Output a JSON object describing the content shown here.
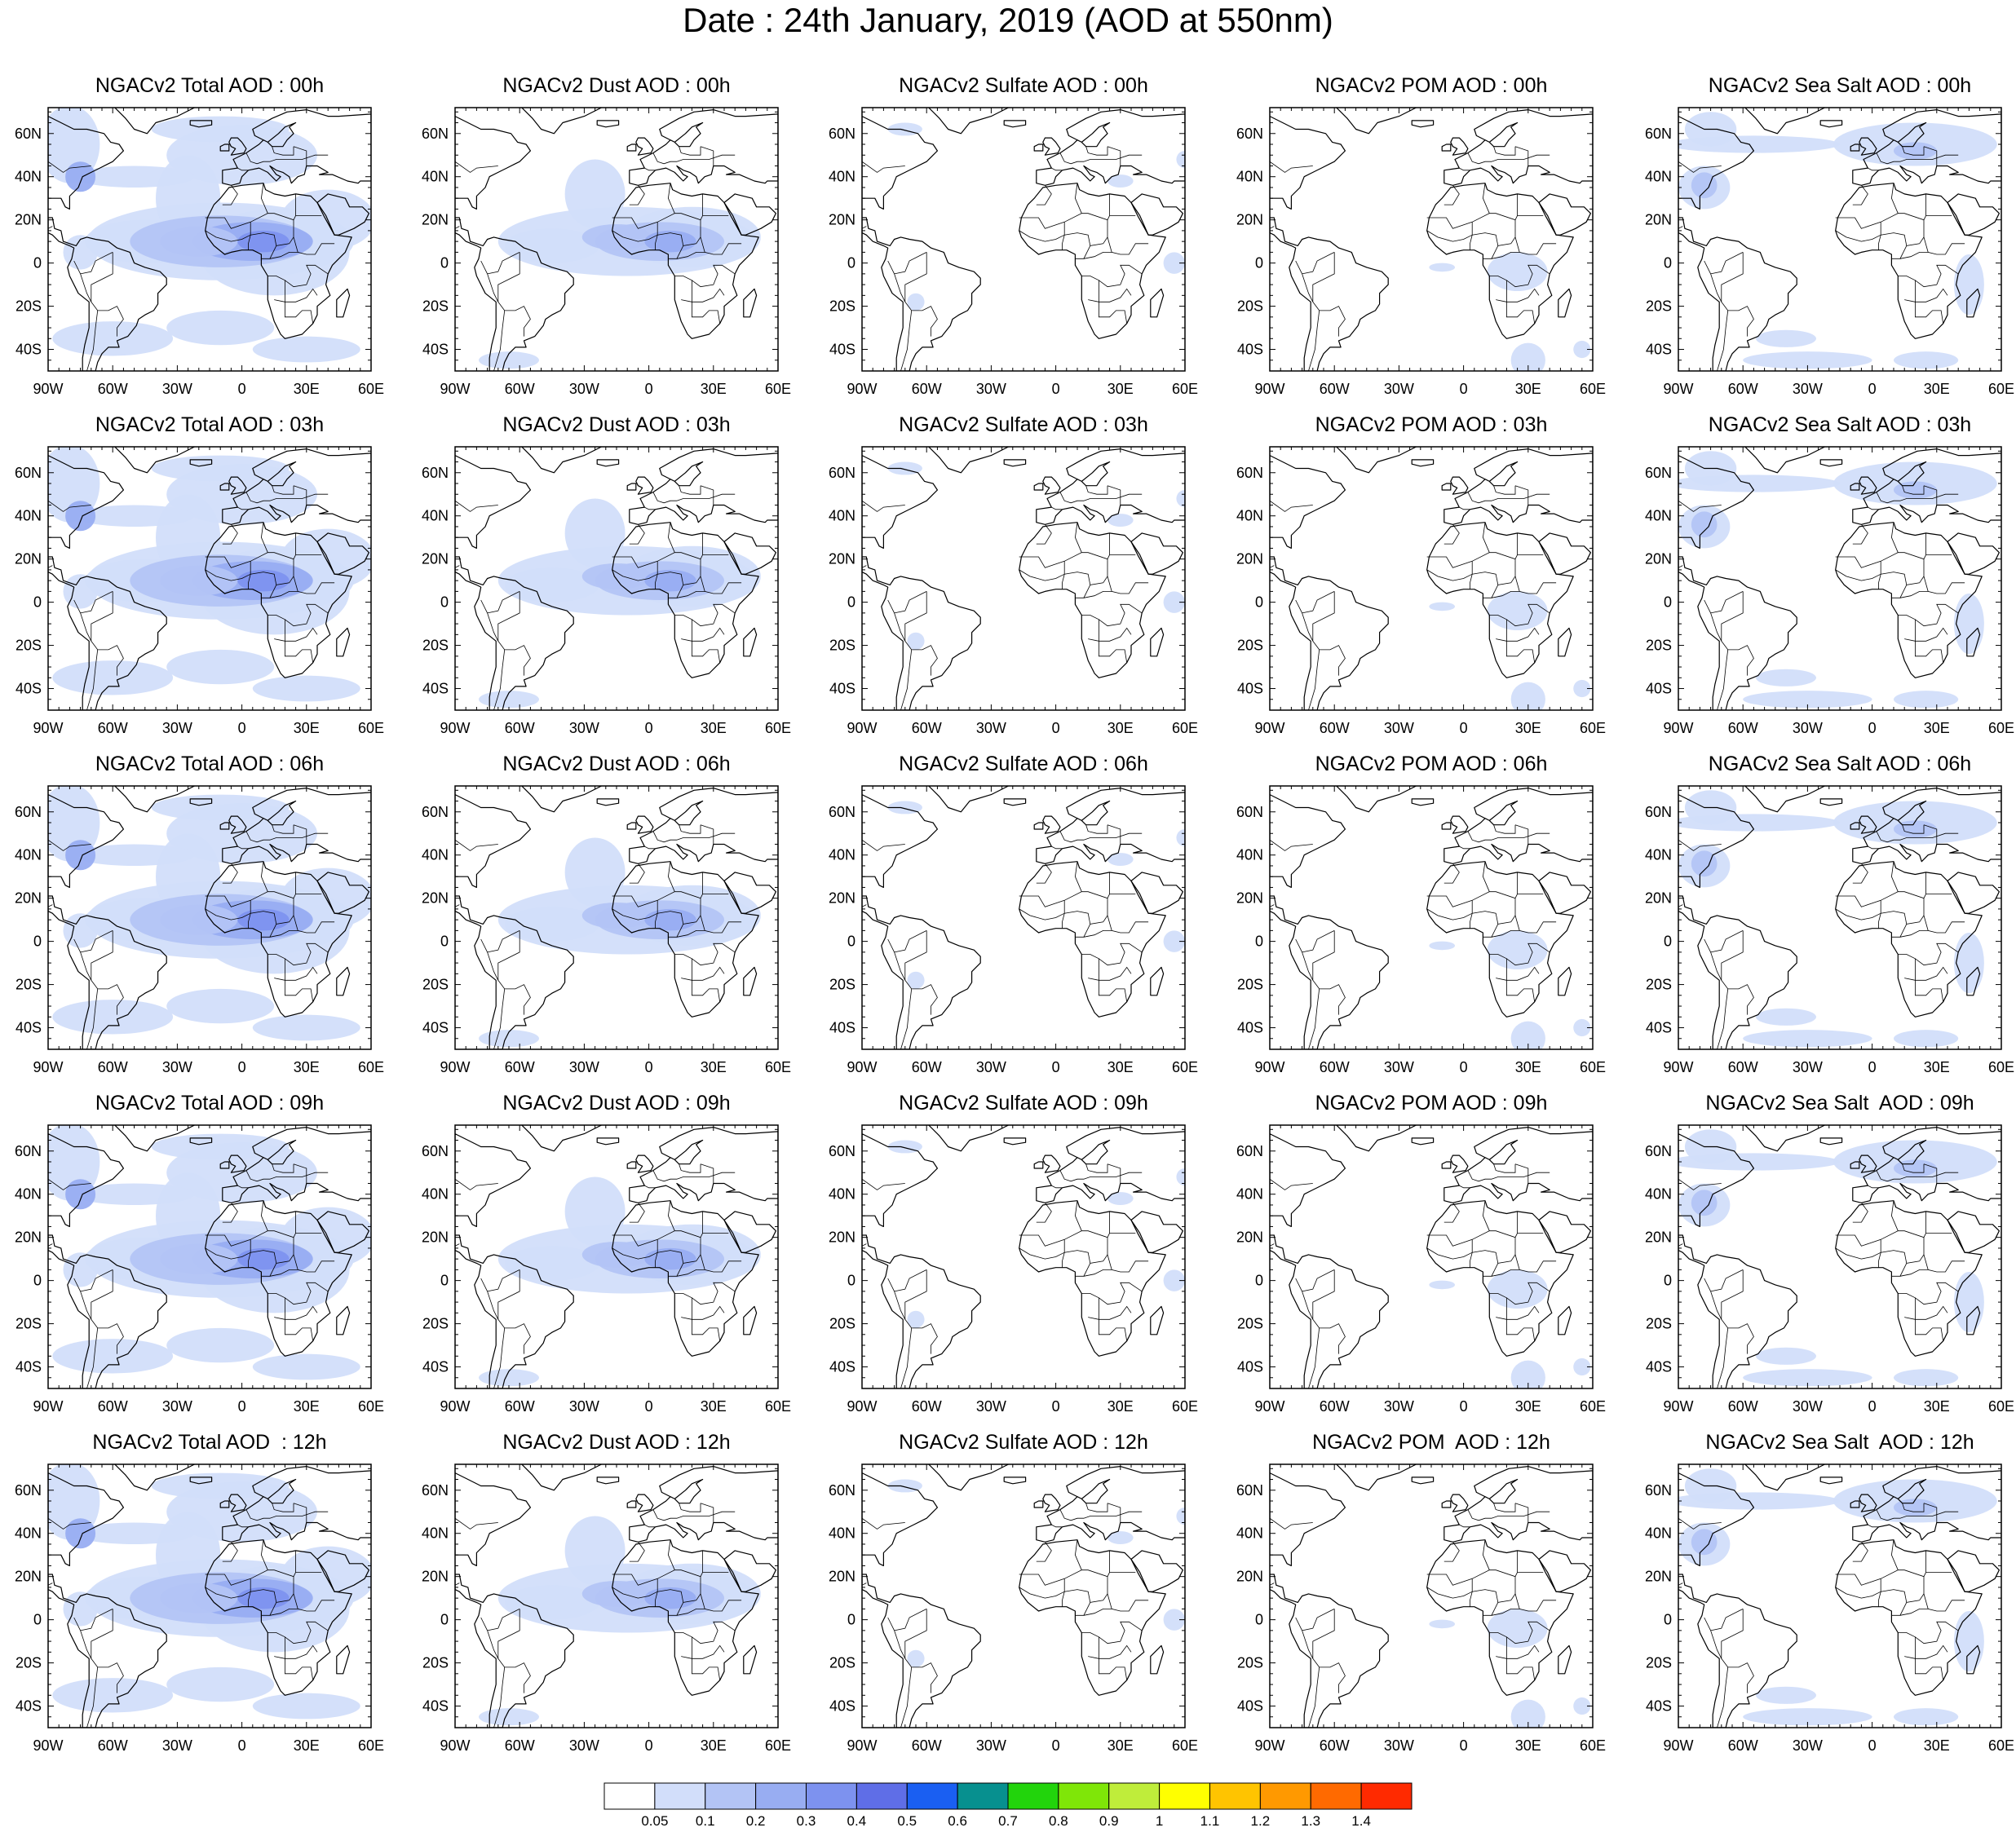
{
  "title": "Date : 24th January, 2019 (AOD at 550nm)",
  "lat_labels": [
    "60N",
    "40N",
    "20N",
    "0",
    "20S",
    "40S"
  ],
  "lon_labels": [
    "90W",
    "60W",
    "30W",
    "0",
    "30E",
    "60E"
  ],
  "extent": {
    "lon": [
      -90,
      60
    ],
    "lat": [
      -50,
      72
    ]
  },
  "rows": [
    {
      "panels": [
        {
          "title": "NGACv2 Total AOD : 00h",
          "type": "total"
        },
        {
          "title": "NGACv2 Dust AOD : 00h",
          "type": "dust"
        },
        {
          "title": "NGACv2 Sulfate AOD : 00h",
          "type": "sulfate"
        },
        {
          "title": "NGACv2 POM AOD : 00h",
          "type": "pom"
        },
        {
          "title": "NGACv2 Sea Salt AOD : 00h",
          "type": "seasalt"
        }
      ]
    },
    {
      "panels": [
        {
          "title": "NGACv2 Total AOD : 03h",
          "type": "total"
        },
        {
          "title": "NGACv2 Dust AOD : 03h",
          "type": "dust"
        },
        {
          "title": "NGACv2 Sulfate AOD : 03h",
          "type": "sulfate"
        },
        {
          "title": "NGACv2 POM AOD : 03h",
          "type": "pom"
        },
        {
          "title": "NGACv2 Sea Salt AOD : 03h",
          "type": "seasalt"
        }
      ]
    },
    {
      "panels": [
        {
          "title": "NGACv2 Total AOD : 06h",
          "type": "total"
        },
        {
          "title": "NGACv2 Dust AOD : 06h",
          "type": "dust"
        },
        {
          "title": "NGACv2 Sulfate AOD : 06h",
          "type": "sulfate"
        },
        {
          "title": "NGACv2 POM AOD : 06h",
          "type": "pom"
        },
        {
          "title": "NGACv2 Sea Salt AOD : 06h",
          "type": "seasalt"
        }
      ]
    },
    {
      "panels": [
        {
          "title": "NGACv2 Total AOD : 09h",
          "type": "total"
        },
        {
          "title": "NGACv2 Dust AOD : 09h",
          "type": "dust"
        },
        {
          "title": "NGACv2 Sulfate AOD : 09h",
          "type": "sulfate"
        },
        {
          "title": "NGACv2 POM AOD : 09h",
          "type": "pom"
        },
        {
          "title": "NGACv2 Sea Salt  AOD : 09h",
          "type": "seasalt"
        }
      ]
    },
    {
      "panels": [
        {
          "title": "NGACv2 Total AOD  : 12h",
          "type": "total"
        },
        {
          "title": "NGACv2 Dust AOD : 12h",
          "type": "dust"
        },
        {
          "title": "NGACv2 Sulfate AOD : 12h",
          "type": "sulfate"
        },
        {
          "title": "NGACv2 POM  AOD : 12h",
          "type": "pom"
        },
        {
          "title": "NGACv2 Sea Salt  AOD : 12h",
          "type": "seasalt"
        }
      ]
    }
  ],
  "colorbar": {
    "labels": [
      "0.05",
      "0.1",
      "0.2",
      "0.3",
      "0.4",
      "0.5",
      "0.6",
      "0.7",
      "0.8",
      "0.9",
      "1",
      "1.1",
      "1.2",
      "1.3",
      "1.4"
    ],
    "colors": [
      "#ffffff",
      "#d2defa",
      "#b3c4f5",
      "#98adf2",
      "#7d92ef",
      "#5f6ee7",
      "#1a5ff2",
      "#07908f",
      "#22d40c",
      "#7fe608",
      "#bfed3a",
      "#ffff00",
      "#ffc400",
      "#ff9900",
      "#ff6a00",
      "#ff2a00"
    ]
  }
}
